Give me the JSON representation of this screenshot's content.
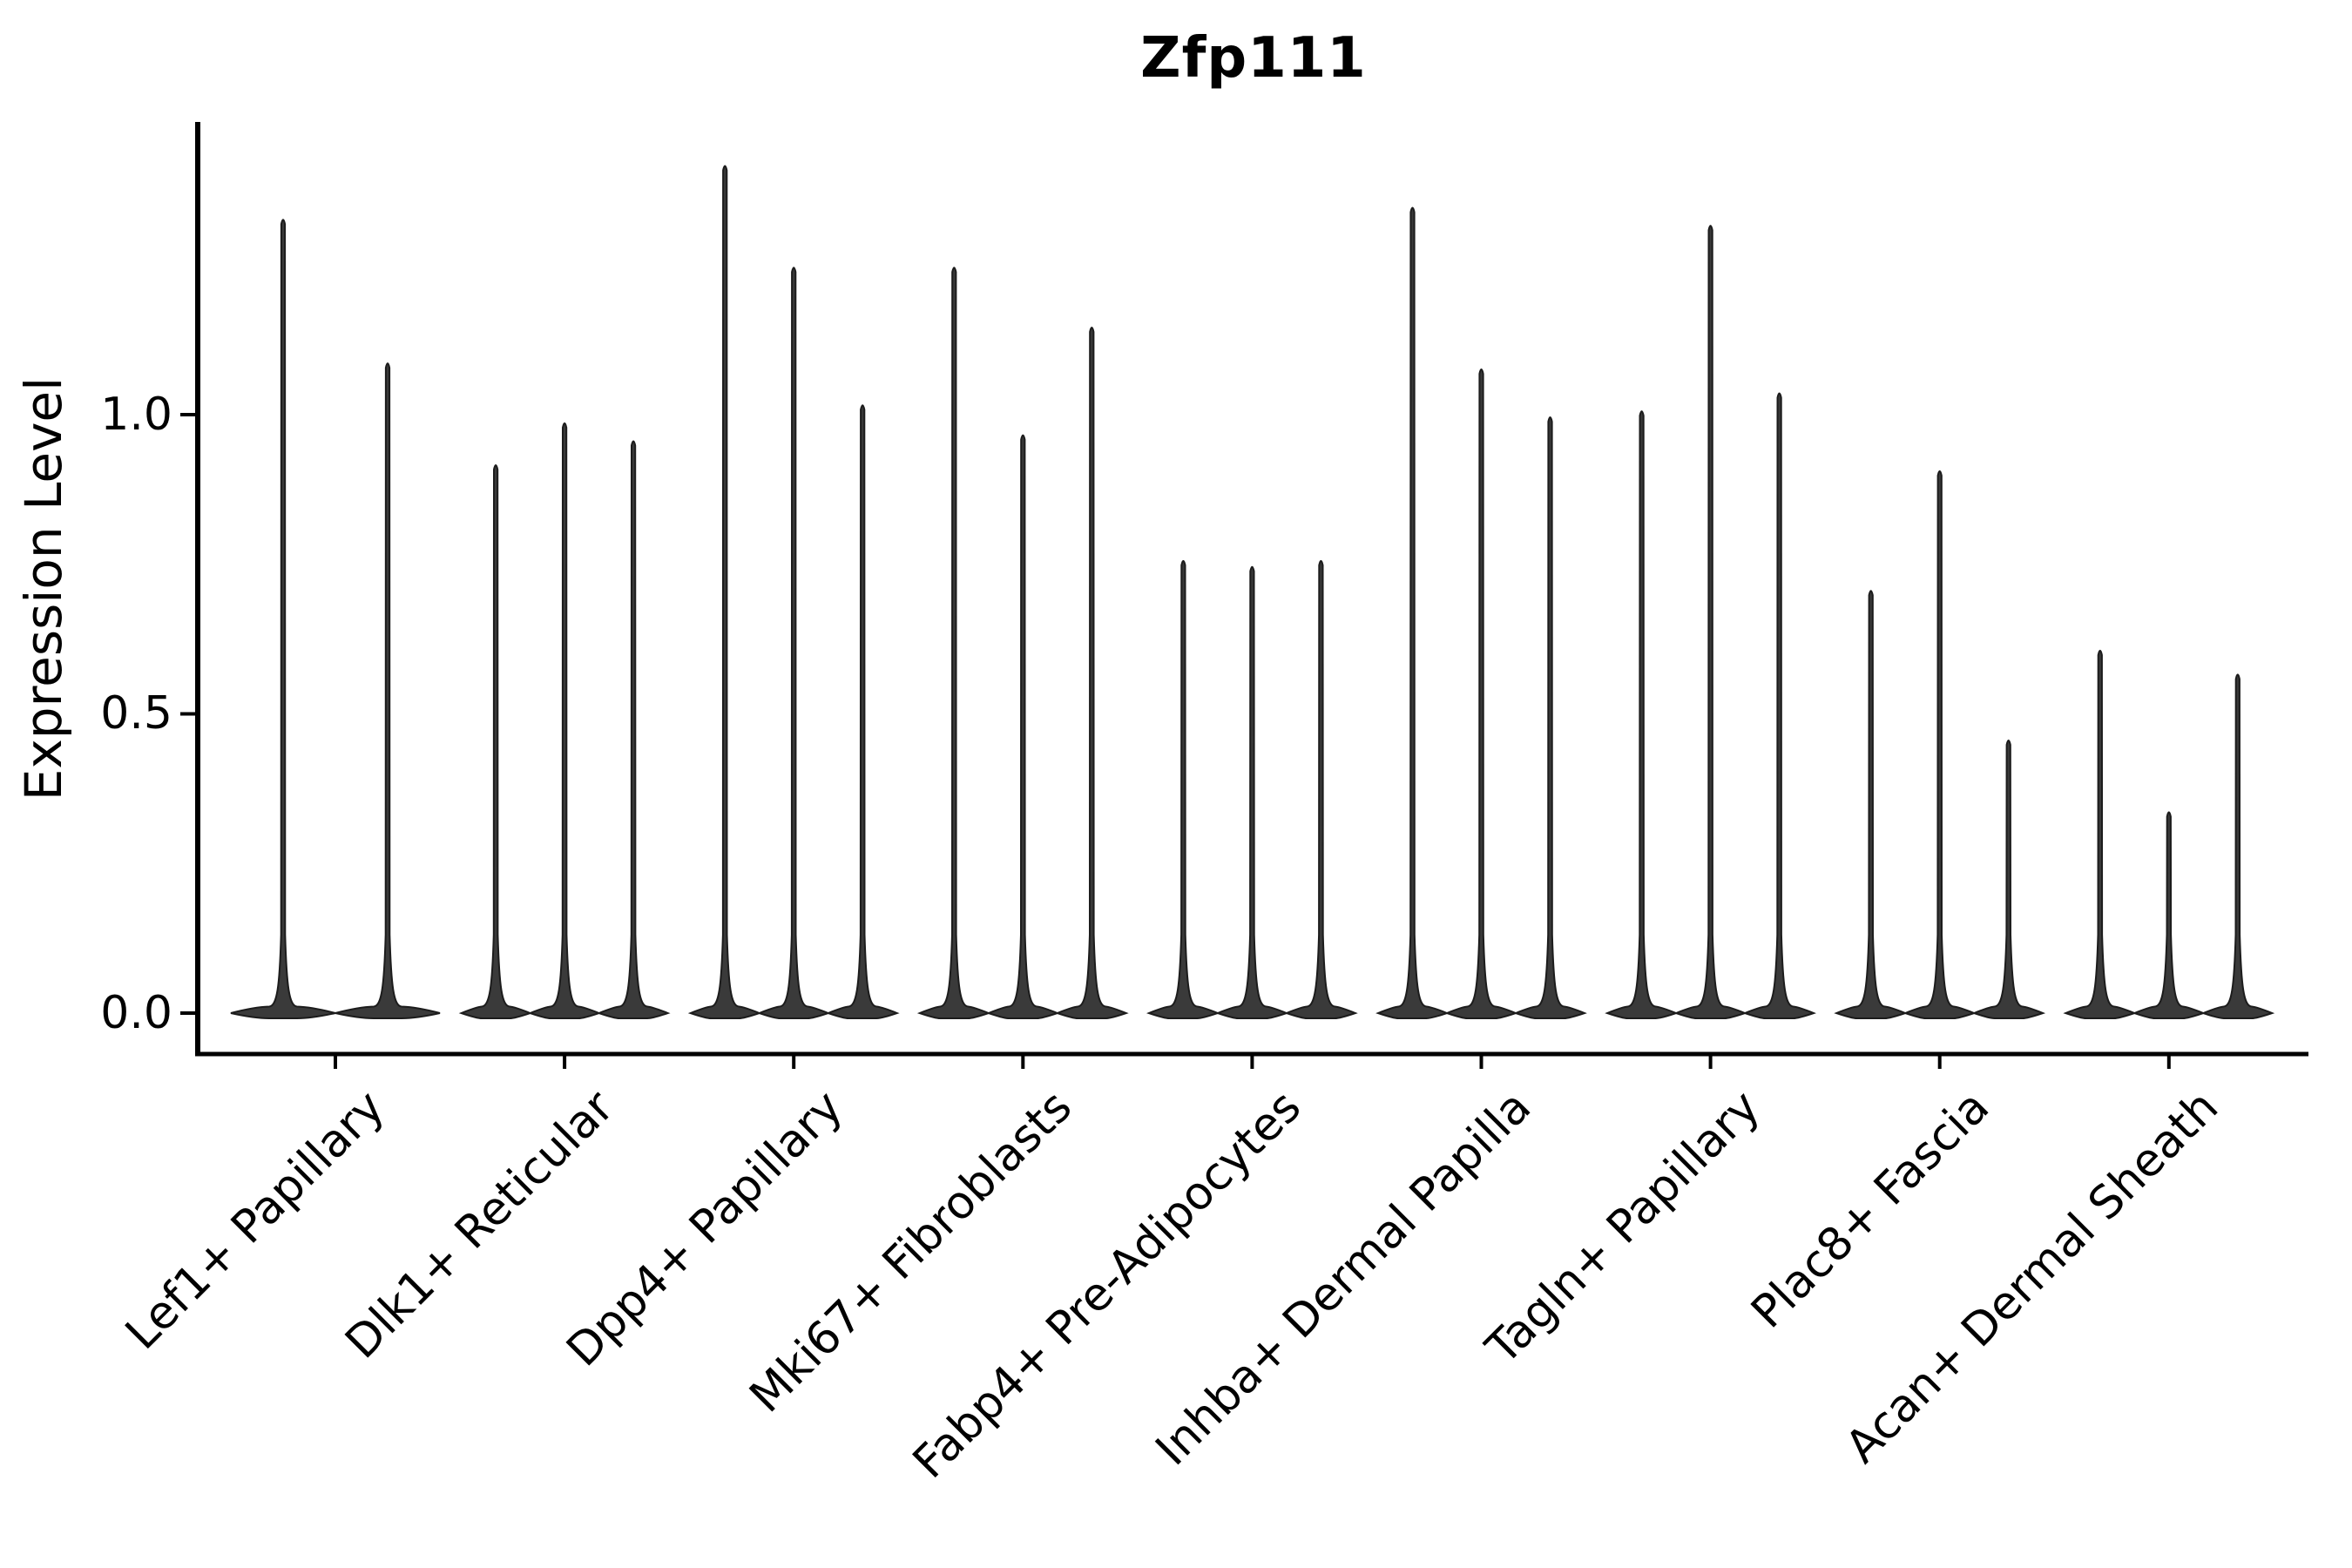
{
  "title": "Zfp111",
  "axes": {
    "ylabel": "Expression Level",
    "ytick_labels": [
      "0.0",
      "0.5",
      "1.0"
    ]
  },
  "chart_data": {
    "type": "violin",
    "title": "Zfp111",
    "xlabel": "",
    "ylabel": "Expression Level",
    "yticks": [
      0.0,
      0.5,
      1.0
    ],
    "ylim": [
      -0.07,
      1.49
    ],
    "grid": false,
    "legend": "none",
    "note": "Single-cell violin plot; each category holds narrow-spike violins whose values below are the maximum expression level reached by each violin (bulk of density at 0).",
    "categories": [
      "Lef1+ Papillary",
      "Dlk1+ Reticular",
      "Dpp4+ Papillary",
      "Mki67+ Fibroblasts",
      "Fabp4+ Pre-Adipocytes",
      "Inhba+ Dermal Papilla",
      "Tagln+ Papillary",
      "Plac8+ Fascia",
      "Acan+ Dermal Sheath"
    ],
    "violin_max_values": [
      [
        1.33,
        1.09
      ],
      [
        0.92,
        0.99,
        0.96
      ],
      [
        1.42,
        1.25,
        1.02
      ],
      [
        1.25,
        0.97,
        1.15
      ],
      [
        0.76,
        0.75,
        0.76
      ],
      [
        1.35,
        1.08,
        1.0
      ],
      [
        1.01,
        1.32,
        1.04
      ],
      [
        0.71,
        0.91,
        0.46
      ],
      [
        0.61,
        0.34,
        0.57
      ]
    ],
    "violin_color": "#3a3a3a",
    "violin_edge_color": "#1c1c1c",
    "axis_color": "#000000"
  }
}
